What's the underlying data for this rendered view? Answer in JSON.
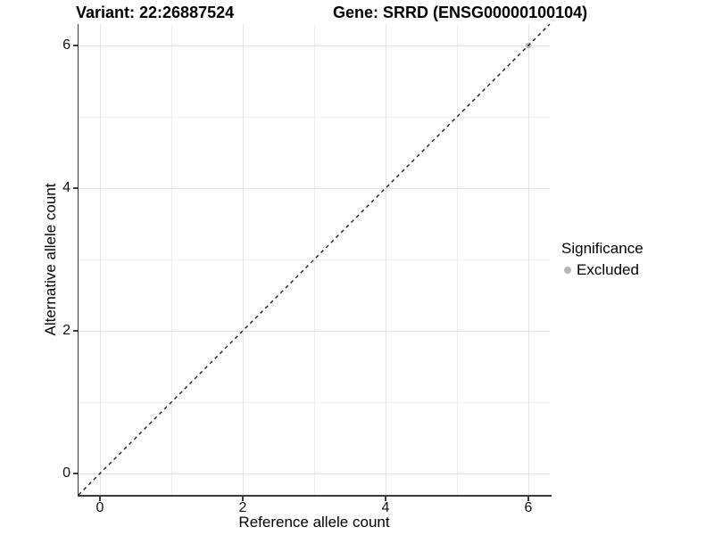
{
  "titles": {
    "variant": "Variant: 22:26887524",
    "gene": "Gene: SRRD (ENSG00000100104)"
  },
  "legend": {
    "title": "Significance",
    "items": [
      {
        "label": "Excluded",
        "color": "#b6b6b6"
      }
    ]
  },
  "chart_data": {
    "type": "scatter",
    "title": "Variant: 22:26887524   Gene: SRRD (ENSG00000100104)",
    "xlabel": "Reference allele count",
    "ylabel": "Alternative allele count",
    "xlim": [
      -0.3,
      6.3
    ],
    "ylim": [
      -0.3,
      6.3
    ],
    "x_ticks": [
      0,
      2,
      4,
      6
    ],
    "y_ticks": [
      0,
      2,
      4,
      6
    ],
    "x_minor_ticks": [
      1,
      3,
      5
    ],
    "y_minor_ticks": [
      1,
      3,
      5
    ],
    "grid": true,
    "legend_position": "right",
    "series": [
      {
        "name": "Excluded",
        "color": "#b6b6b6",
        "point_radius": 3.2,
        "points": [
          [
            6,
            6
          ]
        ]
      }
    ],
    "reference_line": {
      "slope": 1,
      "intercept": 0,
      "style": "dashed",
      "color": "#0a0a0a",
      "width": 1.3
    },
    "colors": {
      "grid_major": "#e2e2e2",
      "grid_minor": "#eeeeee",
      "axis_line": "#3a3a3a",
      "text": "#000000"
    }
  }
}
